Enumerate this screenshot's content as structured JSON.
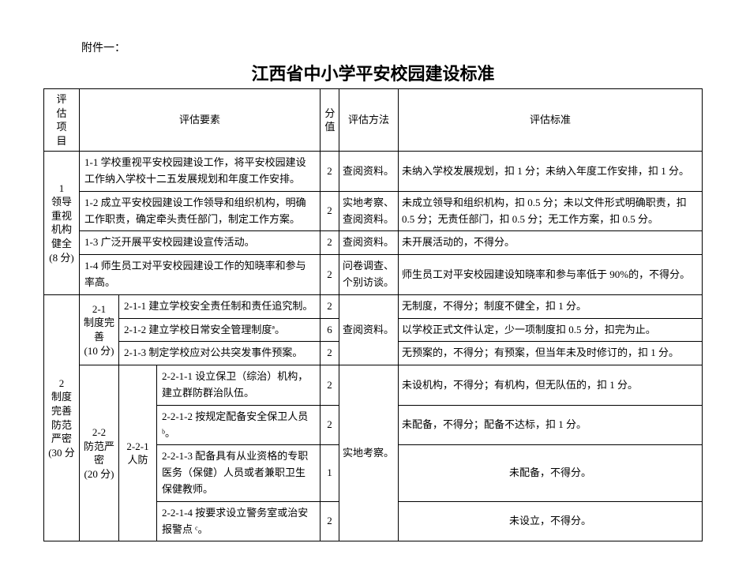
{
  "document": {
    "prefix": "附件一：",
    "title": "江西省中小学平安校园建设标准",
    "background_color": "#ffffff",
    "border_color": "#000000",
    "text_color": "#000000",
    "title_fontsize": 22,
    "body_fontsize": 13
  },
  "headers": {
    "project": "评估项目",
    "yaosu": "评估要素",
    "score": "分值",
    "method": "评估方法",
    "standard": "评估标准"
  },
  "section1": {
    "label": "1\n领导重视机构健全\n(8 分)",
    "rows": [
      {
        "yaosu": "1-1 学校重视平安校园建设工作，将平安校园建设工作纳入学校十二五发展规划和年度工作安排。",
        "score": "2",
        "method": "查阅资料。",
        "standard": "未纳入学校发展规划，扣 1 分；未纳入年度工作安排，扣 1 分。"
      },
      {
        "yaosu": "1-2 成立平安校园建设工作领导和组织机构，明确工作职责，确定牵头责任部门，制定工作方案。",
        "score": "2",
        "method": "实地考察、查阅资料。",
        "standard": "未成立领导和组织机构，扣 0.5 分；未以文件形式明确职责，扣 0.5 分；无责任部门，扣 0.5 分；无工作方案，扣 0.5 分。"
      },
      {
        "yaosu": "1-3 广泛开展平安校园建设宣传活动。",
        "score": "2",
        "method": "查阅资料。",
        "standard": "未开展活动的，不得分。"
      },
      {
        "yaosu": "1-4 师生员工对平安校园建设工作的知晓率和参与率高。",
        "score": "2",
        "method": "问卷调查、个别访谈。",
        "standard": "师生员工对平安校园建设知晓率和参与率低于 90%的，不得分。"
      }
    ]
  },
  "section2": {
    "label": "2\n制度完善防范严密\n(30 分",
    "sub21": {
      "label": "2-1\n制度完善\n(10 分)",
      "method": "查阅资料。",
      "rows": [
        {
          "yaosu": "2-1-1 建立学校安全责任制和责任追究制。",
          "score": "2",
          "standard": "无制度，不得分；制度不健全，扣 1 分。"
        },
        {
          "yaosu": "2-1-2 建立学校日常安全管理制度ª。",
          "score": "6",
          "standard": "以学校正式文件认定，少一项制度扣 0.5 分，扣完为止。"
        },
        {
          "yaosu": "2-1-3 制定学校应对公共突发事件预案。",
          "score": "2",
          "standard": "无预案的，不得分；有预案，但当年未及时修订的，扣 1 分。"
        }
      ]
    },
    "sub22": {
      "label": "2-2\n防范严密\n(20 分)",
      "sub221": {
        "label": "2-2-1\n人防",
        "method": "实地考察。",
        "rows": [
          {
            "yaosu": "2-2-1-1 设立保卫（综治）机构，建立群防群治队伍。",
            "score": "2",
            "standard": "未设机构，不得分；有机构，但无队伍的，扣 1 分。"
          },
          {
            "yaosu": "2-2-1-2 按规定配备安全保卫人员 ᵇ。",
            "score": "2",
            "standard": "未配备，不得分；配备不达标，扣 1 分。"
          },
          {
            "yaosu": "2-2-1-3 配备具有从业资格的专职医务（保健）人员或者兼职卫生保健教师。",
            "score": "1",
            "standard": "未配备，不得分。"
          },
          {
            "yaosu": "2-2-1-4 按要求设立警务室或治安报警点 ᶜ。",
            "score": "2",
            "standard": "未设立，不得分。"
          }
        ]
      }
    }
  }
}
